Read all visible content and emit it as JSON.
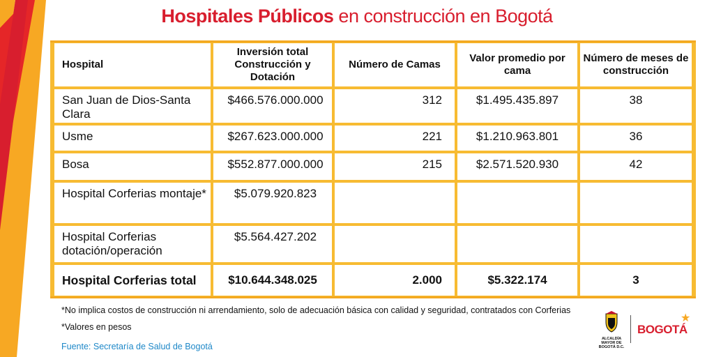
{
  "title": {
    "bold": "Hospitales Públicos",
    "rest": " en construcción en Bogotá"
  },
  "table": {
    "headers": [
      "Hospital",
      "Inversión total Construcción y Dotación",
      "Número de Camas",
      "Valor promedio por cama",
      "Número de meses de construcción"
    ],
    "rows": [
      {
        "hospital": "San Juan de Dios-Santa Clara",
        "inversion": "$466.576.000.000",
        "camas": "312",
        "valor": "$1.495.435.897",
        "meses": "38"
      },
      {
        "hospital": "Usme",
        "inversion": "$267.623.000.000",
        "camas": "221",
        "valor": "$1.210.963.801",
        "meses": "36"
      },
      {
        "hospital": "Bosa",
        "inversion": "$552.877.000.000",
        "camas": "215",
        "valor": "$2.571.520.930",
        "meses": "42"
      },
      {
        "hospital": "Hospital Corferias montaje*",
        "inversion": "$5.079.920.823",
        "camas": "",
        "valor": "",
        "meses": ""
      },
      {
        "hospital": "Hospital Corferias dotación/operación",
        "inversion": "$5.564.427.202",
        "camas": "",
        "valor": "",
        "meses": ""
      }
    ],
    "total": {
      "hospital": "Hospital Corferias total",
      "inversion": "$10.644.348.025",
      "camas": "2.000",
      "valor": "$5.322.174",
      "meses": "3"
    }
  },
  "notes": [
    "*No implica costos de construcción ni arrendamiento, solo de adecuación básica con calidad y seguridad, contratados con Corferias",
    "*Valores en pesos"
  ],
  "source": "Fuente: Secretaría de Salud de Bogotá",
  "logos": {
    "alcaldia": "ALCALDÍA MAYOR DE BOGOTÁ D.C.",
    "bogota": "BOGOTÁ"
  },
  "colors": {
    "title_red": "#d81e2e",
    "border_yellow": "#f7bb32",
    "source_blue": "#1e88c8"
  }
}
